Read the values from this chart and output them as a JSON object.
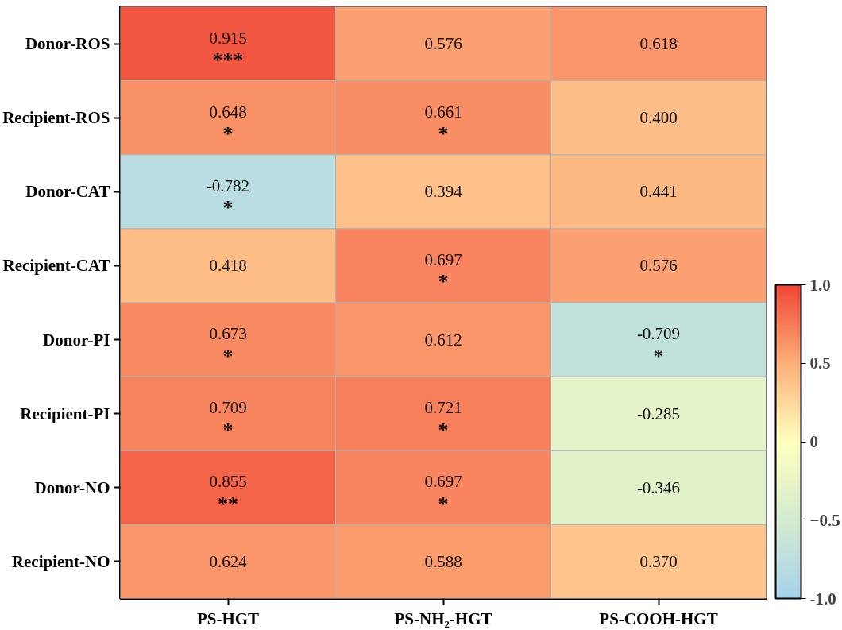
{
  "chart_data": {
    "type": "heatmap",
    "categories": [
      "PS-HGT",
      "PS-NH₂-HGT",
      "PS-COOH-HGT"
    ],
    "y_categories": [
      "Donor-ROS",
      "Recipient-ROS",
      "Donor-CAT",
      "Recipient-CAT",
      "Donor-PI",
      "Recipient-PI",
      "Donor-NO",
      "Recipient-NO"
    ],
    "cells": [
      [
        0.915,
        0.576,
        0.618
      ],
      [
        0.648,
        0.661,
        0.4
      ],
      [
        -0.782,
        0.394,
        0.441
      ],
      [
        0.418,
        0.697,
        0.576
      ],
      [
        0.673,
        0.612,
        -0.709
      ],
      [
        0.709,
        0.721,
        -0.285
      ],
      [
        0.855,
        0.697,
        -0.346
      ],
      [
        0.624,
        0.588,
        0.37
      ]
    ],
    "cell_labels": [
      [
        "0.915\n***",
        "0.576",
        "0.618"
      ],
      [
        "0.648\n*",
        "0.661\n*",
        "0.400"
      ],
      [
        "-0.782\n*",
        "0.394",
        "0.441"
      ],
      [
        "0.418",
        "0.697\n*",
        "0.576"
      ],
      [
        "0.673\n*",
        "0.612",
        "-0.709\n*"
      ],
      [
        "0.709\n*",
        "0.721\n*",
        "-0.285"
      ],
      [
        "0.855\n**",
        "0.697\n*",
        "-0.346"
      ],
      [
        "0.624",
        "0.588",
        "0.370"
      ]
    ],
    "clim": [
      -1.0,
      1.0
    ],
    "cticks": [
      {
        "value": -1.0,
        "label": "-1.0"
      },
      -0.5,
      0,
      0.5,
      {
        "value": 1.0,
        "label": "1.0"
      }
    ]
  }
}
